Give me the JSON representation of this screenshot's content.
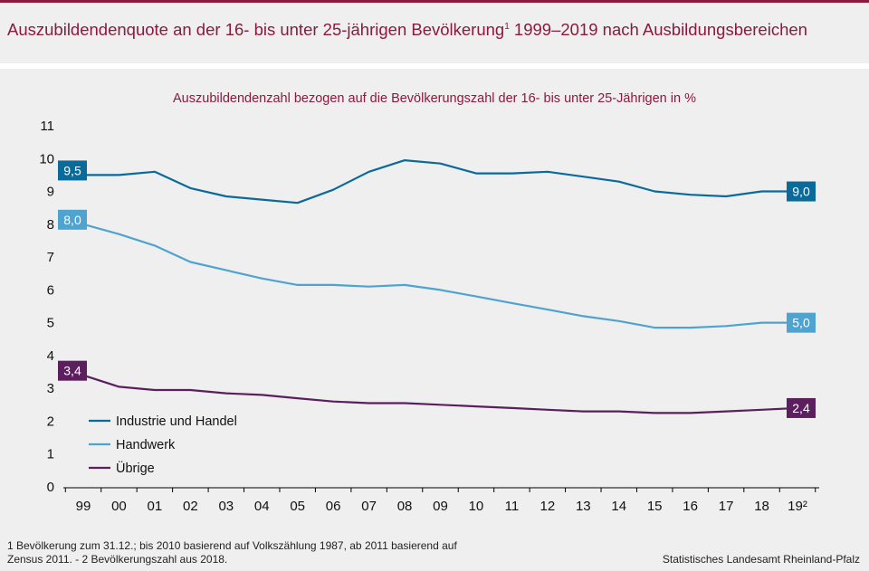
{
  "header": {
    "title": "Auszubildendenquote an der 16- bis unter 25-jährigen Bevölkerung",
    "title_sup": "1",
    "title_rest": " 1999–2019 nach Ausbildungsbereichen"
  },
  "footer": {
    "footnote_line1": "1 Bevölkerung  zum 31.12.; bis 2010 basierend  auf Volkszählung 1987, ab 2011 basierend auf",
    "footnote_line2": "Zensus 2011. -  2 Bevölkerungszahl  aus 2018.",
    "source": "Statistisches Landesamt Rheinland-Pfalz"
  },
  "colors": {
    "accent": "#8b1a3c",
    "industrie": "#0a6a9a",
    "handwerk": "#4fa3d1",
    "uebrige": "#5c1f5e"
  },
  "chart_data": {
    "type": "line",
    "title": "Auszubildendenzahl  bezogen  auf die Bevölkerungszahl  der 16- bis unter  25-Jährigen in %",
    "xlabel": "",
    "ylabel": "",
    "categories": [
      "99",
      "00",
      "01",
      "02",
      "03",
      "04",
      "05",
      "06",
      "07",
      "08",
      "09",
      "10",
      "11",
      "12",
      "13",
      "14",
      "15",
      "16",
      "17",
      "18",
      "19²"
    ],
    "yticks": [
      "0",
      "1",
      "2",
      "3",
      "4",
      "5",
      "6",
      "7",
      "8",
      "9",
      "10",
      "11"
    ],
    "ylim": [
      0,
      11
    ],
    "grid": false,
    "legend_position": "bottom-left",
    "series": [
      {
        "name": "Industrie und Handel",
        "color": "#0a6a9a",
        "values": [
          9.5,
          9.5,
          9.6,
          9.1,
          8.85,
          8.75,
          8.65,
          9.05,
          9.6,
          9.95,
          9.85,
          9.55,
          9.55,
          9.6,
          9.45,
          9.3,
          9.0,
          8.9,
          8.85,
          9.0,
          9.0
        ],
        "start_label": "9,5",
        "end_label": "9,0"
      },
      {
        "name": "Handwerk",
        "color": "#4fa3d1",
        "values": [
          8.0,
          7.7,
          7.35,
          6.85,
          6.6,
          6.35,
          6.15,
          6.15,
          6.1,
          6.15,
          6.0,
          5.8,
          5.6,
          5.4,
          5.2,
          5.05,
          4.85,
          4.85,
          4.9,
          5.0,
          5.0
        ],
        "start_label": "8,0",
        "end_label": "5,0"
      },
      {
        "name": "Übrige",
        "color": "#5c1f5e",
        "values": [
          3.4,
          3.05,
          2.95,
          2.95,
          2.85,
          2.8,
          2.7,
          2.6,
          2.55,
          2.55,
          2.5,
          2.45,
          2.4,
          2.35,
          2.3,
          2.3,
          2.25,
          2.25,
          2.3,
          2.35,
          2.4
        ],
        "start_label": "3,4",
        "end_label": "2,4"
      }
    ]
  }
}
